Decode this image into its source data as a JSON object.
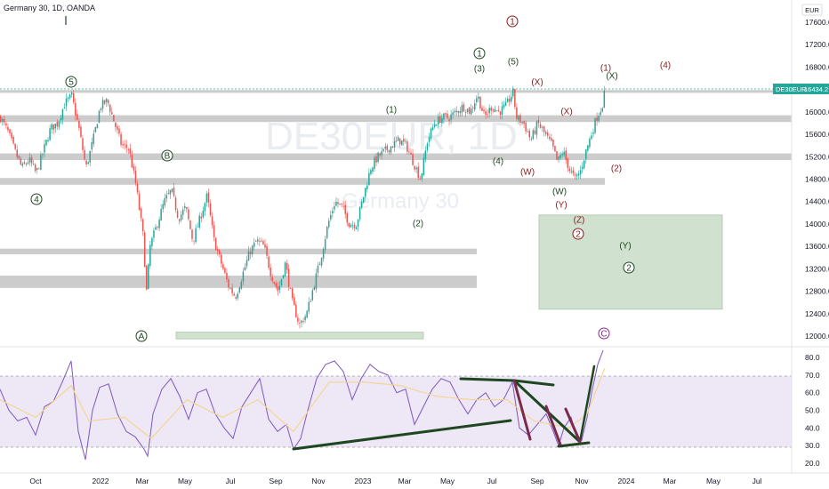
{
  "chart_data": [
    {
      "type": "candlestick",
      "title": "Germany 30, 1D, OANDA",
      "currency": "EUR",
      "watermark_symbol": "DE30EUR, 1D",
      "watermark_name": "Germany 30",
      "x_ticks": [
        "Oct",
        "2022",
        "Mar",
        "May",
        "Jul",
        "Sep",
        "Nov",
        "2023",
        "Mar",
        "May",
        "Jul",
        "Sep",
        "Nov",
        "2024",
        "Mar",
        "May",
        "Jul"
      ],
      "y_ticks": [
        12000.0,
        12400.0,
        12800.0,
        13200.0,
        13600.0,
        14000.0,
        14400.0,
        14800.0,
        15200.0,
        15600.0,
        16000.0,
        16400.0,
        16800.0,
        17200.0,
        17600.0
      ],
      "ylim": [
        11950,
        17850
      ],
      "last_price": {
        "label": "DE30EUR",
        "value": 16434.2
      },
      "series": [
        {
          "name": "DE30EUR",
          "close_path": [
            [
              0,
              15900
            ],
            [
              8,
              15650
            ],
            [
              16,
              15300
            ],
            [
              24,
              15000
            ],
            [
              32,
              15150
            ],
            [
              40,
              14900
            ],
            [
              48,
              15300
            ],
            [
              56,
              15700
            ],
            [
              64,
              15800
            ],
            [
              72,
              16150
            ],
            [
              80,
              16280
            ],
            [
              88,
              15700
            ],
            [
              96,
              15000
            ],
            [
              104,
              15500
            ],
            [
              112,
              16100
            ],
            [
              120,
              16200
            ],
            [
              128,
              15800
            ],
            [
              136,
              15400
            ],
            [
              144,
              15350
            ],
            [
              152,
              14700
            ],
            [
              160,
              13800
            ],
            [
              164,
              12800
            ],
            [
              168,
              13600
            ],
            [
              176,
              14000
            ],
            [
              184,
              14400
            ],
            [
              192,
              14600
            ],
            [
              200,
              14100
            ],
            [
              208,
              14300
            ],
            [
              216,
              13700
            ],
            [
              224,
              14100
            ],
            [
              232,
              14500
            ],
            [
              240,
              13700
            ],
            [
              248,
              13300
            ],
            [
              256,
              12900
            ],
            [
              264,
              12700
            ],
            [
              272,
              13100
            ],
            [
              280,
              13500
            ],
            [
              288,
              13700
            ],
            [
              296,
              13600
            ],
            [
              304,
              13100
            ],
            [
              312,
              12800
            ],
            [
              320,
              13300
            ],
            [
              328,
              12600
            ],
            [
              336,
              12200
            ],
            [
              344,
              12400
            ],
            [
              352,
              12900
            ],
            [
              360,
              13400
            ],
            [
              368,
              14000
            ],
            [
              376,
              14400
            ],
            [
              384,
              14300
            ],
            [
              392,
              14000
            ],
            [
              400,
              14000
            ],
            [
              408,
              14500
            ],
            [
              416,
              15000
            ],
            [
              424,
              15200
            ],
            [
              432,
              15300
            ],
            [
              440,
              15400
            ],
            [
              448,
              15500
            ],
            [
              456,
              15400
            ],
            [
              464,
              15100
            ],
            [
              472,
              14800
            ],
            [
              480,
              15500
            ],
            [
              488,
              15800
            ],
            [
              496,
              15900
            ],
            [
              504,
              15900
            ],
            [
              512,
              16000
            ],
            [
              520,
              16100
            ],
            [
              528,
              16000
            ],
            [
              536,
              16300
            ],
            [
              544,
              15900
            ],
            [
              552,
              16100
            ],
            [
              560,
              16000
            ],
            [
              568,
              16100
            ],
            [
              576,
              16350
            ],
            [
              580,
              15900
            ],
            [
              588,
              15800
            ],
            [
              596,
              15500
            ],
            [
              604,
              15800
            ],
            [
              612,
              15600
            ],
            [
              620,
              15400
            ],
            [
              626,
              15100
            ],
            [
              632,
              15300
            ],
            [
              640,
              14950
            ],
            [
              646,
              14800
            ],
            [
              652,
              14950
            ],
            [
              658,
              15300
            ],
            [
              664,
              15600
            ],
            [
              670,
              15900
            ],
            [
              676,
              16100
            ],
            [
              680,
              16434
            ]
          ]
        }
      ],
      "zones": [
        {
          "kind": "resistance",
          "price": [
            16340,
            16390
          ]
        },
        {
          "kind": "resistance",
          "price": [
            15820,
            15940
          ]
        },
        {
          "kind": "support",
          "price": [
            15140,
            15260
          ]
        },
        {
          "kind": "support",
          "price": [
            14700,
            14820
          ]
        },
        {
          "kind": "support",
          "price": [
            13460,
            13560
          ]
        },
        {
          "kind": "support",
          "price": [
            12860,
            13080
          ]
        },
        {
          "kind": "target",
          "price": [
            12480,
            14160
          ]
        },
        {
          "kind": "target",
          "price": [
            11950,
            12070
          ]
        }
      ],
      "wave_labels": [
        {
          "text": "1",
          "style": "circle",
          "color": "#8b1a1a"
        },
        {
          "text": "5",
          "style": "circle",
          "color": "#1e4620"
        },
        {
          "text": "1",
          "style": "circle",
          "color": "#1e4620"
        },
        {
          "text": "(3)",
          "style": "plain",
          "color": "#1e4620"
        },
        {
          "text": "(5)",
          "style": "plain",
          "color": "#1e4620"
        },
        {
          "text": "(X)",
          "style": "plain",
          "color": "#8b1a1a"
        },
        {
          "text": "(1)",
          "style": "plain",
          "color": "#8b1a1a"
        },
        {
          "text": "(X)",
          "style": "plain",
          "color": "#1e4620"
        },
        {
          "text": "(4)",
          "style": "plain",
          "color": "#8b1a1a"
        },
        {
          "text": "(1)",
          "style": "plain",
          "color": "#1e4620"
        },
        {
          "text": "(X)",
          "style": "plain",
          "color": "#8b1a1a"
        },
        {
          "text": "(4)",
          "style": "plain",
          "color": "#1e4620"
        },
        {
          "text": "(W)",
          "style": "plain",
          "color": "#8b1a1a"
        },
        {
          "text": "(2)",
          "style": "plain",
          "color": "#8b1a1a"
        },
        {
          "text": "(W)",
          "style": "plain",
          "color": "#1e4620"
        },
        {
          "text": "(Y)",
          "style": "plain",
          "color": "#8b1a1a"
        },
        {
          "text": "B",
          "style": "circle",
          "color": "#1e4620"
        },
        {
          "text": "4",
          "style": "circle",
          "color": "#1e4620"
        },
        {
          "text": "(2)",
          "style": "plain",
          "color": "#1e4620"
        },
        {
          "text": "(Z)",
          "style": "plain",
          "color": "#8b1a1a"
        },
        {
          "text": "2",
          "style": "circle",
          "color": "#8b1a1a"
        },
        {
          "text": "(Y)",
          "style": "plain",
          "color": "#1e4620"
        },
        {
          "text": "2",
          "style": "circle",
          "color": "#1e4620"
        },
        {
          "text": "A",
          "style": "circle",
          "color": "#1e4620"
        },
        {
          "text": "C",
          "style": "circle",
          "color": "#8b2a8b"
        }
      ]
    },
    {
      "type": "line",
      "title": "",
      "y_ticks": [
        20.0,
        30.0,
        40.0,
        50.0,
        60.0,
        70.0,
        80.0
      ],
      "ylim": [
        16,
        85
      ],
      "bands": {
        "upper": 70,
        "lower": 30
      },
      "series": [
        {
          "name": "",
          "color": "#7e57c2",
          "path": [
            [
              0,
              62
            ],
            [
              10,
              50
            ],
            [
              20,
              44
            ],
            [
              30,
              46
            ],
            [
              40,
              36
            ],
            [
              50,
              52
            ],
            [
              60,
              55
            ],
            [
              70,
              66
            ],
            [
              80,
              78
            ],
            [
              88,
              38
            ],
            [
              96,
              22
            ],
            [
              104,
              50
            ],
            [
              112,
              63
            ],
            [
              122,
              65
            ],
            [
              132,
              48
            ],
            [
              142,
              38
            ],
            [
              152,
              35
            ],
            [
              162,
              28
            ],
            [
              166,
              24
            ],
            [
              172,
              48
            ],
            [
              182,
              62
            ],
            [
              192,
              68
            ],
            [
              202,
              58
            ],
            [
              212,
              45
            ],
            [
              222,
              60
            ],
            [
              232,
              62
            ],
            [
              242,
              48
            ],
            [
              252,
              40
            ],
            [
              262,
              34
            ],
            [
              272,
              52
            ],
            [
              282,
              60
            ],
            [
              292,
              68
            ],
            [
              302,
              45
            ],
            [
              312,
              38
            ],
            [
              322,
              42
            ],
            [
              330,
              28
            ],
            [
              338,
              34
            ],
            [
              346,
              50
            ],
            [
              356,
              68
            ],
            [
              366,
              76
            ],
            [
              376,
              78
            ],
            [
              386,
              72
            ],
            [
              396,
              56
            ],
            [
              406,
              68
            ],
            [
              416,
              76
            ],
            [
              426,
              72
            ],
            [
              436,
              70
            ],
            [
              446,
              60
            ],
            [
              456,
              62
            ],
            [
              466,
              42
            ],
            [
              476,
              52
            ],
            [
              486,
              62
            ],
            [
              496,
              68
            ],
            [
              506,
              66
            ],
            [
              516,
              56
            ],
            [
              526,
              48
            ],
            [
              536,
              56
            ],
            [
              546,
              60
            ],
            [
              556,
              52
            ],
            [
              566,
              56
            ],
            [
              576,
              66
            ],
            [
              584,
              40
            ],
            [
              594,
              36
            ],
            [
              604,
              42
            ],
            [
              614,
              48
            ],
            [
              622,
              38
            ],
            [
              628,
              30
            ],
            [
              634,
              40
            ],
            [
              642,
              46
            ],
            [
              648,
              36
            ],
            [
              654,
              33
            ],
            [
              660,
              46
            ],
            [
              666,
              62
            ],
            [
              672,
              76
            ],
            [
              678,
              84
            ]
          ]
        },
        {
          "name": "",
          "color": "#f4d58d",
          "path": [
            [
              0,
              56
            ],
            [
              40,
              46
            ],
            [
              80,
              64
            ],
            [
              100,
              44
            ],
            [
              140,
              46
            ],
            [
              170,
              34
            ],
            [
              210,
              56
            ],
            [
              250,
              46
            ],
            [
              290,
              56
            ],
            [
              330,
              38
            ],
            [
              370,
              66
            ],
            [
              410,
              66
            ],
            [
              450,
              64
            ],
            [
              490,
              58
            ],
            [
              530,
              56
            ],
            [
              570,
              56
            ],
            [
              600,
              44
            ],
            [
              640,
              40
            ],
            [
              660,
              48
            ],
            [
              680,
              74
            ]
          ]
        }
      ]
    }
  ],
  "colors": {
    "up": "#26a69a",
    "down": "#ef5350",
    "zone": "#c3c3c3",
    "target": "#c8dcc8",
    "rsi_band": "#ede7f6",
    "rsi_line": "#7e57c2",
    "trendline": "#1e4620",
    "trendline_alt": "#7a2a4a",
    "label_green": "#1e4620",
    "label_red": "#8b1a1a",
    "price_tag": "#26a69a"
  }
}
